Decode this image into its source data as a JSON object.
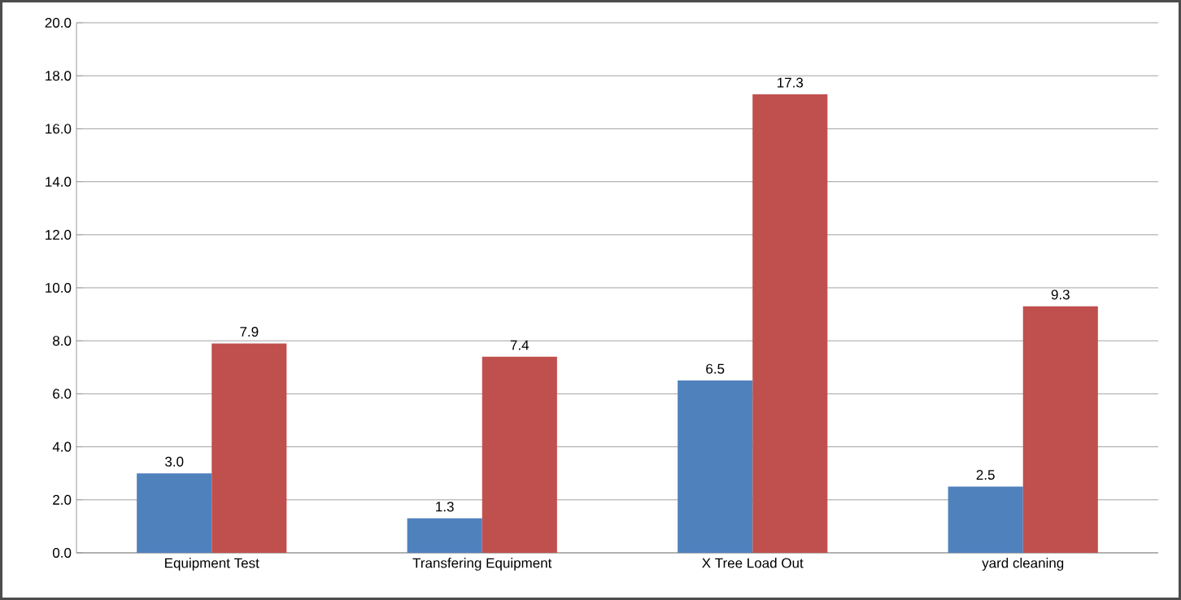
{
  "chart_data": {
    "type": "bar",
    "categories": [
      "Equipment Test",
      "Transfering Equipment",
      "X Tree Load Out",
      "yard cleaning"
    ],
    "series": [
      {
        "color": "#4f81bd",
        "values": [
          3.0,
          1.3,
          6.5,
          2.5
        ],
        "value_labels": [
          "3.0",
          "1.3",
          "6.5",
          "2.5"
        ]
      },
      {
        "color": "#c0504d",
        "values": [
          7.9,
          7.4,
          17.3,
          9.3
        ],
        "value_labels": [
          "7.9",
          "7.4",
          "17.3",
          "9.3"
        ]
      }
    ],
    "ylim": [
      0,
      20
    ],
    "yticks": [
      {
        "value": 0,
        "label": "0.0"
      },
      {
        "value": 2,
        "label": "2.0"
      },
      {
        "value": 4,
        "label": "4.0"
      },
      {
        "value": 6,
        "label": "6.0"
      },
      {
        "value": 8,
        "label": "8.0"
      },
      {
        "value": 10,
        "label": "10.0"
      },
      {
        "value": 12,
        "label": "12.0"
      },
      {
        "value": 14,
        "label": "14.0"
      },
      {
        "value": 16,
        "label": "16.0"
      },
      {
        "value": 18,
        "label": "18.0"
      },
      {
        "value": 20,
        "label": "20.0"
      }
    ],
    "grid": "y"
  }
}
